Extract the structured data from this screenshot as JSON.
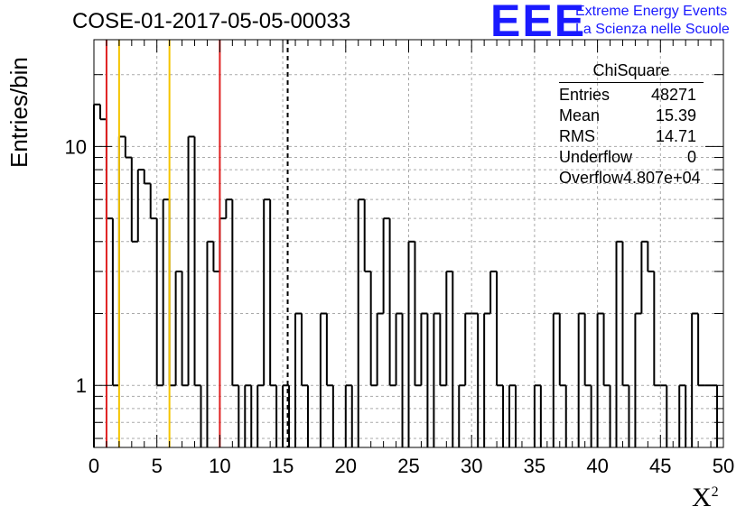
{
  "header": {
    "title": "COSE-01-2017-05-05-00033",
    "logo_text": "EEE",
    "brand_line1": "Extreme Energy Events",
    "brand_line2": "La Scienza nelle Scuole"
  },
  "stats": {
    "title": "ChiSquare",
    "rows": [
      {
        "label": "Entries",
        "value": "48271"
      },
      {
        "label": "Mean",
        "value": "15.39"
      },
      {
        "label": "RMS",
        "value": "14.71"
      },
      {
        "label": "Underflow",
        "value": "0"
      },
      {
        "label": "Overflow",
        "value": "4.807e+04"
      }
    ]
  },
  "chart_data": {
    "type": "histogram",
    "title": "COSE-01-2017-05-05-00033",
    "xlabel": "X",
    "xlabel_sup": "2",
    "ylabel": "Entries/bin",
    "xlim": [
      0,
      50
    ],
    "ylim": [
      0.55,
      28
    ],
    "yscale": "log",
    "grid": true,
    "bin_width": 0.5,
    "x_ticks": [
      0,
      5,
      10,
      15,
      20,
      25,
      30,
      35,
      40,
      45,
      50
    ],
    "y_tick_labels": [
      {
        "value": 1,
        "label": "1"
      },
      {
        "value": 10,
        "label": "10"
      }
    ],
    "bins": [
      [
        0.0,
        15
      ],
      [
        0.5,
        13
      ],
      [
        1.0,
        5
      ],
      [
        1.5,
        1
      ],
      [
        2.0,
        11
      ],
      [
        2.5,
        9
      ],
      [
        3.0,
        4
      ],
      [
        3.5,
        8
      ],
      [
        4.0,
        7
      ],
      [
        4.5,
        5
      ],
      [
        5.0,
        1
      ],
      [
        5.5,
        6
      ],
      [
        6.0,
        1
      ],
      [
        6.5,
        3
      ],
      [
        7.0,
        1
      ],
      [
        7.5,
        11
      ],
      [
        8.0,
        1
      ],
      [
        9.0,
        4
      ],
      [
        9.5,
        3
      ],
      [
        10.0,
        5
      ],
      [
        10.5,
        6
      ],
      [
        11.0,
        1
      ],
      [
        12.0,
        1
      ],
      [
        13.0,
        1
      ],
      [
        13.5,
        6
      ],
      [
        14.0,
        1
      ],
      [
        15.0,
        1
      ],
      [
        16.0,
        2
      ],
      [
        16.5,
        1
      ],
      [
        18.0,
        2
      ],
      [
        18.5,
        1
      ],
      [
        20.0,
        1
      ],
      [
        21.0,
        6
      ],
      [
        21.5,
        3
      ],
      [
        22.0,
        1
      ],
      [
        22.5,
        2
      ],
      [
        23.0,
        5
      ],
      [
        23.5,
        1
      ],
      [
        24.0,
        2
      ],
      [
        25.0,
        4
      ],
      [
        25.5,
        1
      ],
      [
        26.0,
        2
      ],
      [
        27.0,
        2
      ],
      [
        27.5,
        1
      ],
      [
        28.0,
        3
      ],
      [
        29.0,
        1
      ],
      [
        29.5,
        2
      ],
      [
        30.0,
        2
      ],
      [
        31.0,
        2
      ],
      [
        31.5,
        3
      ],
      [
        32.0,
        1
      ],
      [
        33.0,
        1
      ],
      [
        35.0,
        1
      ],
      [
        36.5,
        2
      ],
      [
        37.0,
        1
      ],
      [
        38.5,
        2
      ],
      [
        39.0,
        1
      ],
      [
        40.0,
        2
      ],
      [
        40.5,
        1
      ],
      [
        41.5,
        4
      ],
      [
        42.0,
        1
      ],
      [
        43.0,
        2
      ],
      [
        43.5,
        4
      ],
      [
        44.0,
        3
      ],
      [
        44.5,
        1
      ],
      [
        45.0,
        1
      ],
      [
        46.5,
        1
      ],
      [
        47.5,
        2
      ],
      [
        48.0,
        1
      ],
      [
        48.5,
        1
      ],
      [
        49.0,
        1
      ]
    ],
    "vertical_lines": [
      {
        "x": 1,
        "color": "#e02020",
        "style": "solid"
      },
      {
        "x": 2,
        "color": "#f5c400",
        "style": "solid"
      },
      {
        "x": 6,
        "color": "#f5c400",
        "style": "solid"
      },
      {
        "x": 10,
        "color": "#e02020",
        "style": "solid"
      },
      {
        "x": 15.39,
        "color": "#000000",
        "style": "dashed"
      }
    ]
  }
}
